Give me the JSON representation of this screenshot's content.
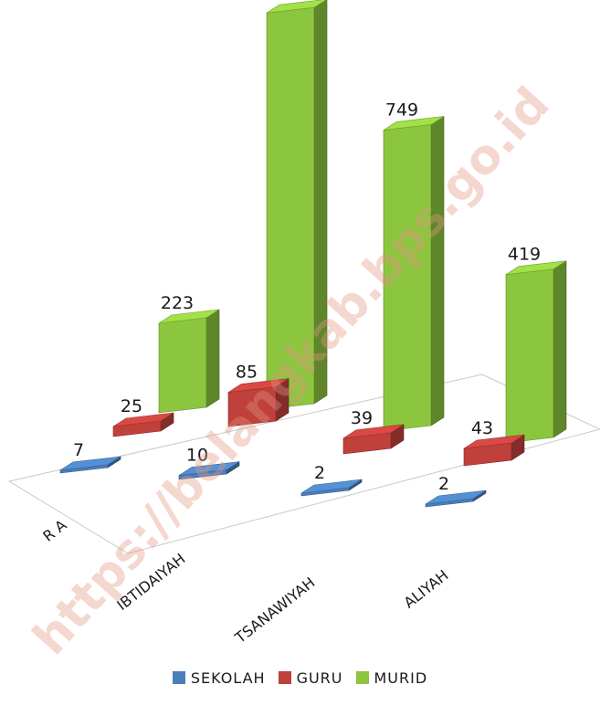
{
  "watermark": "https://belangkab.bps.go.id",
  "chart_data": {
    "type": "bar",
    "categories": [
      "R A",
      "IBTIDAIYAH",
      "TSANAWIYAH",
      "ALIYAH"
    ],
    "series": [
      {
        "name": "SEKOLAH",
        "values": [
          7,
          10,
          2,
          2
        ],
        "color": "#4a7ebb"
      },
      {
        "name": "GURU",
        "values": [
          25,
          85,
          39,
          43
        ],
        "color": "#c0403c"
      },
      {
        "name": "MURID",
        "values": [
          223,
          986,
          749,
          419
        ],
        "color": "#8cc63e"
      }
    ],
    "ylim": [
      0,
      1000
    ],
    "legend": "bottom",
    "grid": false,
    "three_d": true
  }
}
